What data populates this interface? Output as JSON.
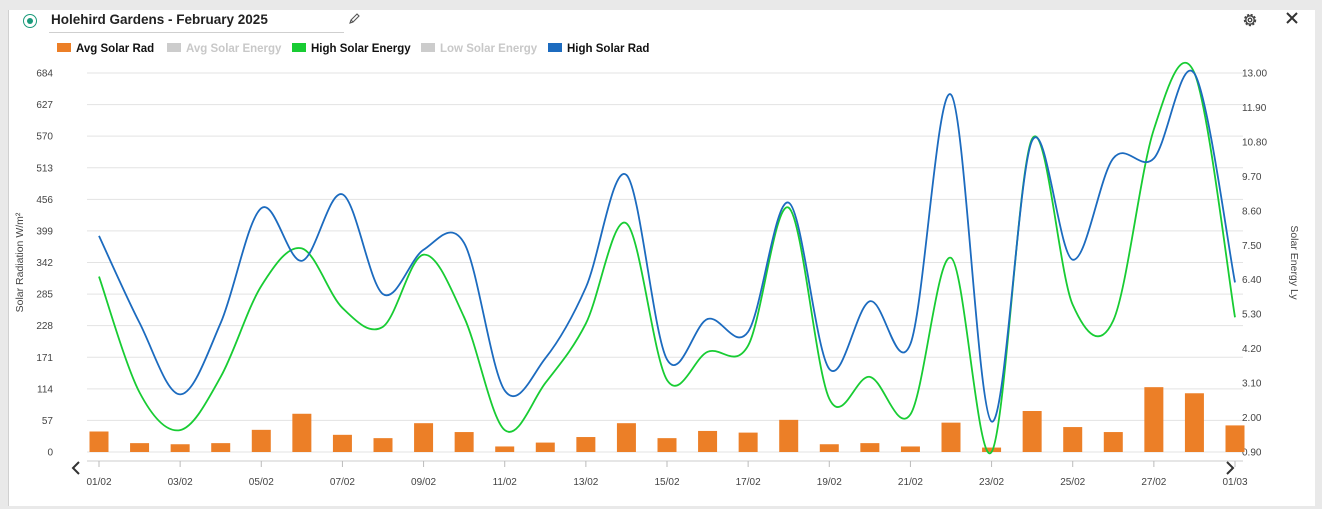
{
  "header": {
    "title": "Holehird Gardens - February 2025"
  },
  "legend": [
    {
      "label": "Avg Solar Rad",
      "color": "#ec7f27",
      "visible": true
    },
    {
      "label": "Avg Solar Energy",
      "color": "#cccccc",
      "visible": false
    },
    {
      "label": "High Solar Energy",
      "color": "#18cc33",
      "visible": true
    },
    {
      "label": "Low Solar Energy",
      "color": "#cccccc",
      "visible": false
    },
    {
      "label": "High Solar Rad",
      "color": "#1c6bbf",
      "visible": true
    }
  ],
  "chart_data": {
    "type": "bar+line",
    "x": [
      "01/02",
      "02/02",
      "03/02",
      "04/02",
      "05/02",
      "06/02",
      "07/02",
      "08/02",
      "09/02",
      "10/02",
      "11/02",
      "12/02",
      "13/02",
      "14/02",
      "15/02",
      "16/02",
      "17/02",
      "18/02",
      "19/02",
      "20/02",
      "21/02",
      "22/02",
      "23/02",
      "24/02",
      "25/02",
      "26/02",
      "27/02",
      "28/02",
      "01/03"
    ],
    "x_tick_labels": [
      "01/02",
      "03/02",
      "05/02",
      "07/02",
      "09/02",
      "11/02",
      "13/02",
      "15/02",
      "17/02",
      "19/02",
      "21/02",
      "23/02",
      "25/02",
      "27/02",
      "01/03"
    ],
    "y_left": {
      "label": "Solar Radiation W/m²",
      "ticks": [
        "0",
        "57",
        "114",
        "171",
        "228",
        "285",
        "342",
        "399",
        "456",
        "513",
        "570",
        "627",
        "684"
      ],
      "range": [
        0,
        684
      ]
    },
    "y_right": {
      "label": "Solar Energy Ly",
      "ticks": [
        "0.90",
        "2.00",
        "3.10",
        "4.20",
        "5.30",
        "6.40",
        "7.50",
        "8.60",
        "9.70",
        "10.80",
        "11.90",
        "13.00"
      ],
      "range": [
        0.9,
        13.0
      ]
    },
    "series": [
      {
        "name": "Avg Solar Rad",
        "type": "bar",
        "axis": "left",
        "color": "#ec7f27",
        "values": [
          37,
          16,
          14,
          16,
          40,
          69,
          31,
          25,
          52,
          36,
          10,
          17,
          27,
          52,
          25,
          38,
          35,
          58,
          14,
          16,
          10,
          53,
          8,
          74,
          45,
          36,
          117,
          106,
          48
        ]
      },
      {
        "name": "High Solar Energy",
        "type": "line",
        "axis": "right",
        "color": "#18cc33",
        "values": [
          6.5,
          2.8,
          1.6,
          3.3,
          6.2,
          7.4,
          5.5,
          4.9,
          7.2,
          5.2,
          1.6,
          3.1,
          5.0,
          8.2,
          3.2,
          4.1,
          4.3,
          8.7,
          2.6,
          3.3,
          2.1,
          7.1,
          0.9,
          10.9,
          5.6,
          5.1,
          11.2,
          13.0,
          5.2
        ]
      },
      {
        "name": "High Solar Rad",
        "type": "line",
        "axis": "left",
        "color": "#1c6bbf",
        "values": [
          390,
          233,
          104,
          233,
          440,
          345,
          465,
          285,
          365,
          377,
          111,
          169,
          297,
          500,
          167,
          240,
          217,
          450,
          150,
          272,
          195,
          645,
          55,
          562,
          347,
          530,
          530,
          683,
          306
        ]
      }
    ],
    "grid": true,
    "legend_position": "top-left"
  }
}
